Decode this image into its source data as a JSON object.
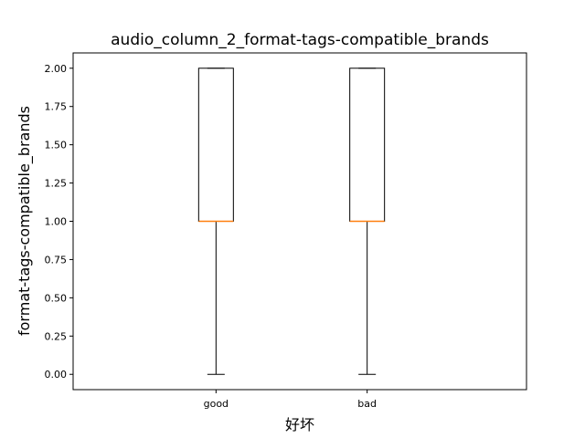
{
  "chart_data": {
    "type": "box",
    "title": "audio_column_2_format-tags-compatible_brands",
    "xlabel": "好坏",
    "ylabel": "format-tags-compatible_brands",
    "ylim": [
      -0.1,
      2.1
    ],
    "y_ticks": [
      "0.00",
      "0.25",
      "0.50",
      "0.75",
      "1.00",
      "1.25",
      "1.50",
      "1.75",
      "2.00"
    ],
    "y_tick_values": [
      0,
      0.25,
      0.5,
      0.75,
      1.0,
      1.25,
      1.5,
      1.75,
      2.0
    ],
    "grid": false,
    "categories": [
      "good",
      "bad"
    ],
    "boxes": [
      {
        "category": "good",
        "whisker_low": 0.0,
        "q1": 1.0,
        "median": 1.0,
        "q3": 2.0,
        "whisker_high": 2.0
      },
      {
        "category": "bad",
        "whisker_low": 0.0,
        "q1": 1.0,
        "median": 1.0,
        "q3": 2.0,
        "whisker_high": 2.0
      }
    ],
    "colors": {
      "box": "#000000",
      "median": "#ff7f0e"
    }
  }
}
